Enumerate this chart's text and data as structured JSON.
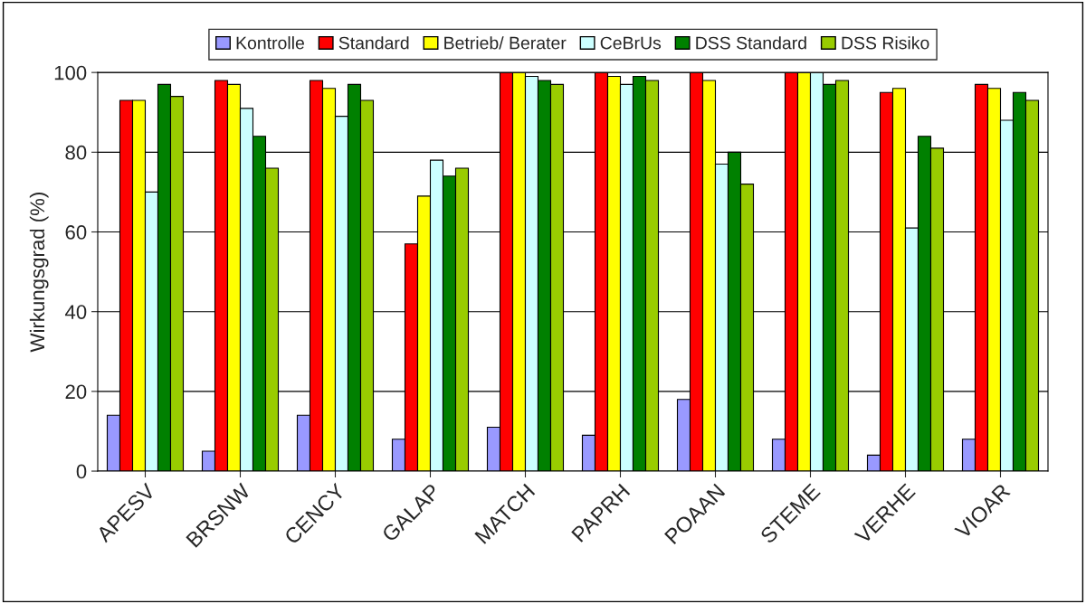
{
  "chart_data": {
    "type": "bar",
    "ylabel": "Wirkungsgrad (%)",
    "categories": [
      "APESV",
      "BRSNW",
      "CENCY",
      "GALAP",
      "MATCH",
      "PAPRH",
      "POAAN",
      "STEME",
      "VERHE",
      "VIOAR"
    ],
    "series": [
      {
        "name": "Kontrolle",
        "color": "#9999ff",
        "values": [
          14,
          5,
          14,
          8,
          11,
          9,
          18,
          8,
          4,
          8
        ]
      },
      {
        "name": "Standard",
        "color": "#ff0000",
        "values": [
          93,
          98,
          98,
          57,
          100,
          100,
          100,
          100,
          95,
          97
        ]
      },
      {
        "name": "Betrieb/ Berater",
        "color": "#ffff00",
        "values": [
          93,
          97,
          96,
          69,
          100,
          99,
          98,
          100,
          96,
          96
        ]
      },
      {
        "name": "CeBrUs",
        "color": "#ccffff",
        "values": [
          70,
          91,
          89,
          78,
          99,
          97,
          77,
          100,
          61,
          88
        ]
      },
      {
        "name": "DSS Standard",
        "color": "#008000",
        "values": [
          97,
          84,
          97,
          74,
          98,
          99,
          80,
          97,
          84,
          95
        ]
      },
      {
        "name": "DSS Risiko",
        "color": "#99cc00",
        "values": [
          94,
          76,
          93,
          76,
          97,
          98,
          72,
          98,
          81,
          93
        ]
      }
    ],
    "ylim": [
      0,
      100
    ],
    "yticks": [
      0,
      20,
      40,
      60,
      80,
      100
    ],
    "grid": "y",
    "legend": "top"
  }
}
